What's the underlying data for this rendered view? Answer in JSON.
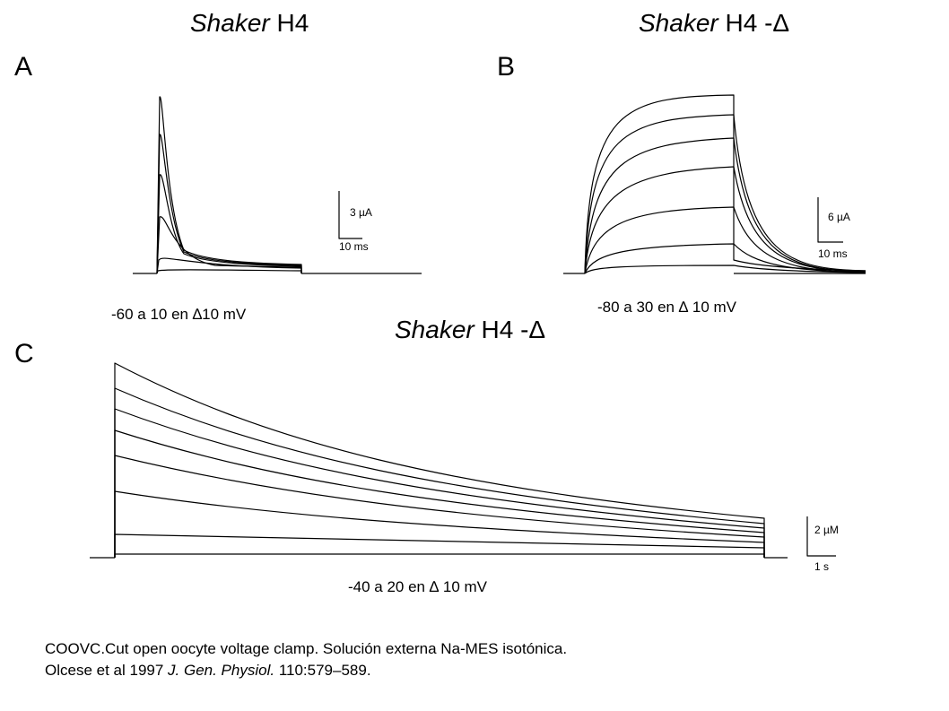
{
  "panels": {
    "A": {
      "letter": "A",
      "title_italic": "Shaker",
      "title_rest": " H4",
      "condition": "-60 a 10 en ∆10 mV",
      "scale_y": "3 µA",
      "scale_x": "10 ms"
    },
    "B": {
      "letter": "B",
      "title_italic": "Shaker",
      "title_rest": " H4 -Δ",
      "condition": "-80 a 30 en ∆ 10 mV",
      "scale_y": "6 µA",
      "scale_x": "10 ms"
    },
    "C": {
      "letter": "C",
      "title_italic": "Shaker",
      "title_rest": " H4 -Δ",
      "condition": "-40 a 20 en ∆ 10 mV",
      "scale_y": "2 µM",
      "scale_x": "1 s"
    }
  },
  "caption": {
    "line1": "COOVC.Cut open oocyte voltage clamp. Solución externa Na-MES isotónica.",
    "line2_author": "Olcese et al 1997 ",
    "line2_journal": "J. Gen. Physiol.",
    "line2_rest": " 110:579–589."
  },
  "colors": {
    "ink": "#000000",
    "background": "#ffffff"
  }
}
